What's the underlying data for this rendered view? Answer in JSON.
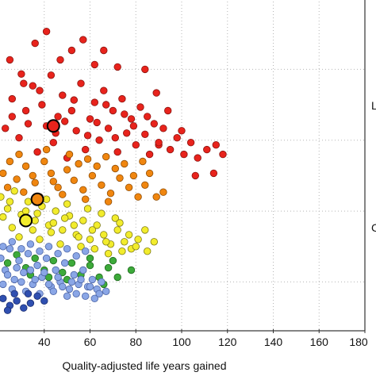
{
  "chart_data": {
    "type": "scatter",
    "title": "",
    "xlabel": "Quality-adjusted life years gained",
    "ylabel": "",
    "xlim": [
      20,
      180
    ],
    "x_ticks": [
      40,
      60,
      80,
      100,
      120,
      140,
      160,
      180
    ],
    "x_tick_labels": [
      "40",
      "60",
      "80",
      "100",
      "120",
      "140",
      "160",
      "180"
    ],
    "grid": true,
    "right_edge_labels": [
      "L",
      "C"
    ],
    "colors": {
      "red": "#e8231c",
      "orange": "#f0860f",
      "yellow": "#f2ec2c",
      "green": "#3daa3a",
      "blue": "#8aa6e6",
      "darkblue": "#2f4fb0"
    },
    "series": [
      {
        "color": "red",
        "points": [
          [
            23,
            190
          ],
          [
            26,
            215
          ],
          [
            29,
            182
          ],
          [
            32,
            205
          ],
          [
            35,
            226
          ],
          [
            37,
            170
          ],
          [
            39,
            210
          ],
          [
            41,
            192
          ],
          [
            43,
            235
          ],
          [
            44,
            178
          ],
          [
            46,
            200
          ],
          [
            48,
            218
          ],
          [
            50,
            165
          ],
          [
            52,
            205
          ],
          [
            54,
            188
          ],
          [
            56,
            228
          ],
          [
            58,
            172
          ],
          [
            60,
            198
          ],
          [
            62,
            212
          ],
          [
            64,
            180
          ],
          [
            66,
            222
          ],
          [
            68,
            190
          ],
          [
            70,
            205
          ],
          [
            72,
            170
          ],
          [
            74,
            215
          ],
          [
            76,
            186
          ],
          [
            78,
            198
          ],
          [
            80,
            176
          ],
          [
            82,
            208
          ],
          [
            84,
            185
          ],
          [
            86,
            168
          ],
          [
            88,
            194
          ],
          [
            90,
            176
          ],
          [
            92,
            190
          ],
          [
            95,
            172
          ],
          [
            98,
            182
          ],
          [
            101,
            168
          ],
          [
            104,
            178
          ],
          [
            107,
            165
          ],
          [
            111,
            172
          ],
          [
            115,
            176
          ],
          [
            118,
            168
          ],
          [
            84,
            240
          ],
          [
            36,
            262
          ],
          [
            41,
            272
          ],
          [
            47,
            248
          ],
          [
            52,
            256
          ],
          [
            62,
            244
          ],
          [
            66,
            256
          ],
          [
            72,
            242
          ],
          [
            57,
            265
          ],
          [
            30,
            236
          ],
          [
            25,
            248
          ],
          [
            89,
            220
          ],
          [
            94,
            205
          ],
          [
            38,
            222
          ],
          [
            45,
            186
          ],
          [
            49,
            196
          ],
          [
            53,
            214
          ],
          [
            59,
            184
          ],
          [
            63,
            195
          ],
          [
            67,
            210
          ],
          [
            71,
            182
          ],
          [
            75,
            202
          ],
          [
            79,
            192
          ],
          [
            85,
            200
          ],
          [
            90,
            178
          ],
          [
            100,
            188
          ],
          [
            26,
            200
          ],
          [
            33,
            194
          ],
          [
            31,
            228
          ],
          [
            106,
            150
          ],
          [
            114,
            152
          ]
        ]
      },
      {
        "color": "orange",
        "points": [
          [
            22,
            152
          ],
          [
            25,
            162
          ],
          [
            28,
            147
          ],
          [
            32,
            158
          ],
          [
            36,
            144
          ],
          [
            40,
            162
          ],
          [
            43,
            152
          ],
          [
            46,
            140
          ],
          [
            50,
            155
          ],
          [
            53,
            146
          ],
          [
            57,
            138
          ],
          [
            61,
            150
          ],
          [
            65,
            142
          ],
          [
            69,
            135
          ],
          [
            73,
            148
          ],
          [
            77,
            140
          ],
          [
            81,
            132
          ],
          [
            84,
            142
          ],
          [
            89,
            132
          ],
          [
            92,
            136
          ],
          [
            24,
            140
          ],
          [
            31,
            136
          ],
          [
            38,
            132
          ],
          [
            48,
            134
          ],
          [
            55,
            160
          ],
          [
            63,
            158
          ],
          [
            71,
            156
          ],
          [
            79,
            150
          ],
          [
            86,
            152
          ],
          [
            29,
            168
          ],
          [
            41,
            172
          ],
          [
            51,
            168
          ],
          [
            59,
            164
          ],
          [
            67,
            166
          ],
          [
            75,
            160
          ],
          [
            83,
            162
          ],
          [
            44,
            145
          ],
          [
            35,
            150
          ],
          [
            68,
            128
          ],
          [
            58,
            130
          ]
        ]
      },
      {
        "color": "yellow",
        "points": [
          [
            21,
            132
          ],
          [
            24,
            122
          ],
          [
            27,
            137
          ],
          [
            30,
            117
          ],
          [
            33,
            128
          ],
          [
            36,
            112
          ],
          [
            39,
            124
          ],
          [
            42,
            108
          ],
          [
            45,
            120
          ],
          [
            48,
            104
          ],
          [
            51,
            116
          ],
          [
            54,
            100
          ],
          [
            57,
            112
          ],
          [
            60,
            96
          ],
          [
            63,
            108
          ],
          [
            66,
            100
          ],
          [
            69,
            92
          ],
          [
            72,
            104
          ],
          [
            75,
            94
          ],
          [
            78,
            88
          ],
          [
            81,
            96
          ],
          [
            85,
            86
          ],
          [
            22,
            115
          ],
          [
            26,
            106
          ],
          [
            29,
            98
          ],
          [
            32,
            120
          ],
          [
            35,
            104
          ],
          [
            38,
            96
          ],
          [
            41,
            130
          ],
          [
            44,
            110
          ],
          [
            47,
            92
          ],
          [
            50,
            126
          ],
          [
            53,
            108
          ],
          [
            56,
            90
          ],
          [
            59,
            122
          ],
          [
            62,
            88
          ],
          [
            65,
            118
          ],
          [
            68,
            84
          ],
          [
            71,
            114
          ],
          [
            74,
            86
          ],
          [
            77,
            100
          ],
          [
            80,
            90
          ],
          [
            84,
            104
          ],
          [
            88,
            94
          ],
          [
            25,
            128
          ],
          [
            31,
            112
          ],
          [
            37,
            118
          ],
          [
            43,
            102
          ],
          [
            49,
            114
          ],
          [
            55,
            98
          ],
          [
            61,
            104
          ],
          [
            67,
            94
          ],
          [
            73,
            110
          ]
        ]
      },
      {
        "color": "green",
        "points": [
          [
            24,
            76
          ],
          [
            28,
            83
          ],
          [
            32,
            72
          ],
          [
            36,
            80
          ],
          [
            40,
            70
          ],
          [
            44,
            78
          ],
          [
            48,
            68
          ],
          [
            52,
            76
          ],
          [
            56,
            66
          ],
          [
            60,
            74
          ],
          [
            64,
            64
          ],
          [
            68,
            72
          ],
          [
            72,
            64
          ],
          [
            60,
            80
          ],
          [
            70,
            78
          ],
          [
            78,
            70
          ],
          [
            66,
            58
          ],
          [
            50,
            62
          ],
          [
            34,
            66
          ],
          [
            42,
            64
          ]
        ]
      },
      {
        "color": "blue",
        "points": [
          [
            21,
            80
          ],
          [
            23,
            70
          ],
          [
            25,
            88
          ],
          [
            27,
            62
          ],
          [
            29,
            78
          ],
          [
            31,
            68
          ],
          [
            33,
            84
          ],
          [
            35,
            58
          ],
          [
            37,
            74
          ],
          [
            39,
            64
          ],
          [
            41,
            80
          ],
          [
            43,
            56
          ],
          [
            45,
            70
          ],
          [
            47,
            60
          ],
          [
            49,
            76
          ],
          [
            51,
            54
          ],
          [
            53,
            66
          ],
          [
            55,
            58
          ],
          [
            57,
            70
          ],
          [
            59,
            56
          ],
          [
            61,
            62
          ],
          [
            63,
            54
          ],
          [
            65,
            60
          ],
          [
            67,
            52
          ],
          [
            22,
            58
          ],
          [
            24,
            66
          ],
          [
            26,
            54
          ],
          [
            28,
            72
          ],
          [
            30,
            60
          ],
          [
            32,
            52
          ],
          [
            34,
            70
          ],
          [
            36,
            62
          ],
          [
            38,
            50
          ],
          [
            40,
            68
          ],
          [
            42,
            58
          ],
          [
            44,
            52
          ],
          [
            46,
            64
          ],
          [
            48,
            56
          ],
          [
            50,
            48
          ],
          [
            52,
            60
          ],
          [
            54,
            50
          ],
          [
            56,
            62
          ],
          [
            58,
            48
          ],
          [
            60,
            56
          ],
          [
            62,
            46
          ],
          [
            64,
            50
          ],
          [
            22,
            90
          ],
          [
            26,
            94
          ],
          [
            30,
            88
          ],
          [
            34,
            92
          ],
          [
            38,
            86
          ],
          [
            42,
            90
          ],
          [
            46,
            84
          ],
          [
            50,
            88
          ],
          [
            54,
            82
          ],
          [
            58,
            86
          ]
        ]
      },
      {
        "color": "darkblue",
        "points": [
          [
            22,
            46
          ],
          [
            25,
            40
          ],
          [
            28,
            44
          ],
          [
            31,
            38
          ],
          [
            34,
            42
          ],
          [
            37,
            48
          ],
          [
            40,
            44
          ],
          [
            27,
            50
          ],
          [
            33,
            50
          ],
          [
            24,
            36
          ]
        ]
      }
    ],
    "highlight_points": [
      {
        "color": "red",
        "x": 44,
        "y": 192
      },
      {
        "color": "orange",
        "x": 37,
        "y": 130
      },
      {
        "color": "yellow",
        "x": 32,
        "y": 112
      }
    ],
    "y_range": [
      20,
      300
    ]
  }
}
